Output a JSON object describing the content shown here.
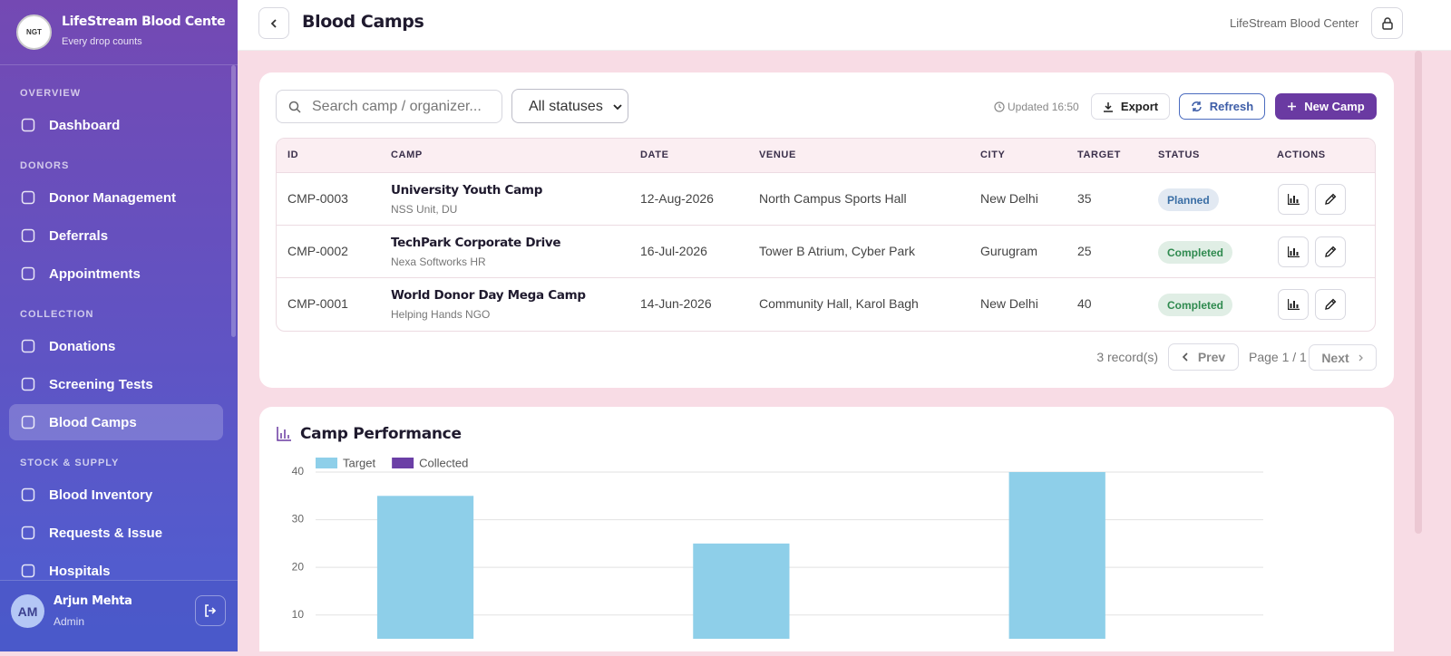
{
  "sidebar": {
    "brand": {
      "logo": "NGT",
      "name": "LifeStream Blood Center",
      "tagline": "Every drop counts"
    },
    "sections": [
      {
        "title": "OVERVIEW",
        "items": [
          {
            "label": "Dashboard"
          }
        ]
      },
      {
        "title": "DONORS",
        "items": [
          {
            "label": "Donor Management"
          },
          {
            "label": "Deferrals"
          },
          {
            "label": "Appointments"
          }
        ]
      },
      {
        "title": "COLLECTION",
        "items": [
          {
            "label": "Donations"
          },
          {
            "label": "Screening Tests"
          },
          {
            "label": "Blood Camps",
            "active": true
          }
        ]
      },
      {
        "title": "STOCK & SUPPLY",
        "items": [
          {
            "label": "Blood Inventory"
          },
          {
            "label": "Requests & Issue"
          },
          {
            "label": "Hospitals"
          }
        ]
      }
    ],
    "user": {
      "initials": "AM",
      "name": "Arjun Mehta",
      "role": "Admin"
    }
  },
  "header": {
    "title": "Blood Camps",
    "org": "LifeStream Blood Center"
  },
  "toolbar": {
    "search_placeholder": "Search camp / organizer...",
    "status_filter": "All statuses",
    "updated": "Updated 16:50",
    "buttons": [
      "Export",
      "Refresh",
      "New Camp"
    ]
  },
  "table": {
    "columns": [
      "ID",
      "CAMP",
      "DATE",
      "VENUE",
      "CITY",
      "TARGET",
      "STATUS",
      "ACTIONS"
    ],
    "rows": [
      {
        "id": "CMP-0003",
        "camp": "University Youth Camp",
        "organizer": "NSS Unit, DU",
        "date": "12-Aug-2026",
        "venue": "North Campus Sports Hall",
        "city": "New Delhi",
        "target": "35",
        "status": "Planned",
        "status_color": "#3a6ea5"
      },
      {
        "id": "CMP-0002",
        "camp": "TechPark Corporate Drive",
        "organizer": "Nexa Softworks HR",
        "date": "16-Jul-2026",
        "venue": "Tower B Atrium, Cyber Park",
        "city": "Gurugram",
        "target": "25",
        "status": "Completed",
        "status_color": "#2f8a4f"
      },
      {
        "id": "CMP-0001",
        "camp": "World Donor Day Mega Camp",
        "organizer": "Helping Hands NGO",
        "date": "14-Jun-2026",
        "venue": "Community Hall, Karol Bagh",
        "city": "New Delhi",
        "target": "40",
        "status": "Completed",
        "status_color": "#2f8a4f"
      }
    ]
  },
  "pagination": {
    "records": "3 record(s)",
    "prev": "Prev",
    "page": "Page 1 / 1",
    "next": "Next"
  },
  "chart_data": {
    "type": "bar",
    "title": "Camp Performance",
    "categories": [
      null,
      null,
      null
    ],
    "series": [
      {
        "name": "Target",
        "color": "#8ecfe9",
        "values": [
          35,
          25,
          40
        ]
      },
      {
        "name": "Collected",
        "color": "#6b3fa6",
        "values": [
          0,
          0,
          0
        ]
      }
    ],
    "ylim": [
      5,
      40
    ],
    "yticks": [
      10,
      20,
      30,
      40
    ],
    "grid": true
  }
}
